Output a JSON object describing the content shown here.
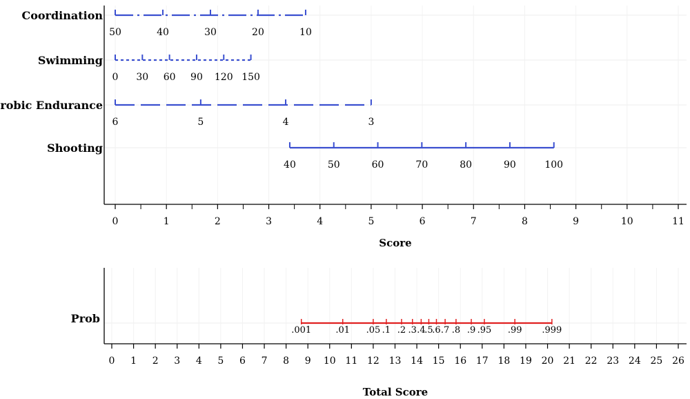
{
  "chart_data": [
    {
      "type": "nomogram",
      "panel": "points",
      "x_axis": {
        "label": "Score",
        "ticks": [
          0,
          1,
          2,
          3,
          4,
          5,
          6,
          7,
          8,
          9,
          10,
          11
        ],
        "range": [
          0,
          11
        ]
      },
      "grid": true,
      "variables": [
        {
          "name": "Coordination",
          "color": "#3a4fd0",
          "line_style": "dashdot",
          "points": [
            {
              "label": "50",
              "score": 0
            },
            {
              "label": "40",
              "score": 0.93
            },
            {
              "label": "30",
              "score": 1.86
            },
            {
              "label": "20",
              "score": 2.79
            },
            {
              "label": "10",
              "score": 3.72
            }
          ]
        },
        {
          "name": "Swimming",
          "color": "#3a4fd0",
          "line_style": "dotted",
          "points": [
            {
              "label": "0",
              "score": 0
            },
            {
              "label": "30",
              "score": 0.53
            },
            {
              "label": "60",
              "score": 1.06
            },
            {
              "label": "90",
              "score": 1.59
            },
            {
              "label": "120",
              "score": 2.12
            },
            {
              "label": "150",
              "score": 2.65
            }
          ]
        },
        {
          "name": "Aerobic Endurance",
          "color": "#3a4fd0",
          "line_style": "dashed",
          "points": [
            {
              "label": "6",
              "score": 0
            },
            {
              "label": "5",
              "score": 1.67
            },
            {
              "label": "4",
              "score": 3.33
            },
            {
              "label": "3",
              "score": 5.0
            }
          ]
        },
        {
          "name": "Shooting",
          "color": "#3a4fd0",
          "line_style": "solid",
          "points": [
            {
              "label": "40",
              "score": 3.41
            },
            {
              "label": "50",
              "score": 4.27
            },
            {
              "label": "60",
              "score": 5.13
            },
            {
              "label": "70",
              "score": 5.99
            },
            {
              "label": "80",
              "score": 6.85
            },
            {
              "label": "90",
              "score": 7.71
            },
            {
              "label": "100",
              "score": 8.57
            }
          ]
        }
      ]
    },
    {
      "type": "nomogram",
      "panel": "total",
      "x_axis": {
        "label": "Total Score",
        "ticks": [
          0,
          1,
          2,
          3,
          4,
          5,
          6,
          7,
          8,
          9,
          10,
          11,
          12,
          13,
          14,
          15,
          16,
          17,
          18,
          19,
          20,
          21,
          22,
          23,
          24,
          25,
          26
        ],
        "range": [
          0,
          26
        ]
      },
      "grid": true,
      "variable": {
        "name": "Prob",
        "color": "#e02020",
        "line_style": "solid",
        "points": [
          {
            "label": ".001",
            "score": 8.7
          },
          {
            "label": ".01",
            "score": 10.6
          },
          {
            "label": ".05",
            "score": 12.0
          },
          {
            "label": ".1",
            "score": 12.6
          },
          {
            "label": ".2",
            "score": 13.3
          },
          {
            "label": ".3",
            "score": 13.8
          },
          {
            "label": ".4",
            "score": 14.2
          },
          {
            "label": ".5",
            "score": 14.55
          },
          {
            "label": ".6",
            "score": 14.9
          },
          {
            "label": ".7",
            "score": 15.3
          },
          {
            "label": ".8",
            "score": 15.8
          },
          {
            "label": ".9",
            "score": 16.5
          },
          {
            "label": ".95",
            "score": 17.1
          },
          {
            "label": ".99",
            "score": 18.5
          },
          {
            "label": ".999",
            "score": 20.2
          }
        ]
      }
    }
  ]
}
